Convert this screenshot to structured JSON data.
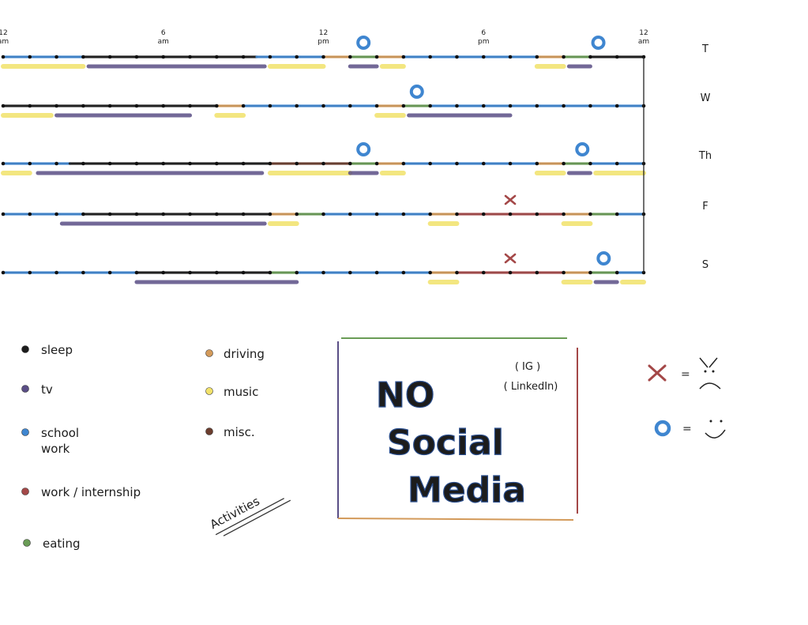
{
  "time_axis": {
    "ticks": [
      {
        "hour": 0,
        "top": "12",
        "bottom": "am"
      },
      {
        "hour": 6,
        "top": "6",
        "bottom": "am"
      },
      {
        "hour": 12,
        "top": "12",
        "bottom": "pm"
      },
      {
        "hour": 18,
        "top": "6",
        "bottom": "pm"
      },
      {
        "hour": 24,
        "top": "12",
        "bottom": "am"
      }
    ]
  },
  "colors": {
    "sleep": "#1c1c1c",
    "tv": "#5a4e86",
    "school": "#3f86d0",
    "work": "#a44848",
    "eating": "#6a9c56",
    "driving": "#d39a5a",
    "music": "#f2e26a",
    "misc": "#6b3d2e",
    "axis": "#222222"
  },
  "days": [
    {
      "label": "T",
      "line": [
        [
          0,
          3,
          "school"
        ],
        [
          3,
          9.5,
          "sleep"
        ],
        [
          9.5,
          12,
          "school"
        ],
        [
          12,
          13,
          "driving"
        ],
        [
          13,
          14,
          "eating"
        ],
        [
          14,
          15,
          "driving"
        ],
        [
          15,
          20,
          "school"
        ],
        [
          20,
          21,
          "driving"
        ],
        [
          21,
          22,
          "eating"
        ],
        [
          22,
          24,
          "sleep"
        ]
      ],
      "under": [
        [
          0,
          3,
          "music"
        ],
        [
          3.2,
          9.8,
          "tv"
        ],
        [
          10,
          12,
          "music"
        ],
        [
          13,
          14,
          "tv"
        ],
        [
          14.2,
          15,
          "music"
        ],
        [
          20,
          21,
          "music"
        ],
        [
          21.2,
          22,
          "tv"
        ]
      ],
      "marks": [
        {
          "hour": 13.5,
          "kind": "happy"
        },
        {
          "hour": 22.3,
          "kind": "happy"
        }
      ]
    },
    {
      "label": "W",
      "line": [
        [
          0,
          8,
          "sleep"
        ],
        [
          8,
          9,
          "driving"
        ],
        [
          9,
          14,
          "school"
        ],
        [
          14,
          15,
          "driving"
        ],
        [
          15,
          16,
          "eating"
        ],
        [
          16,
          24,
          "school"
        ]
      ],
      "under": [
        [
          0,
          1.8,
          "music"
        ],
        [
          2,
          7,
          "tv"
        ],
        [
          8,
          9,
          "music"
        ],
        [
          14,
          15,
          "music"
        ],
        [
          15.2,
          19,
          "tv"
        ]
      ],
      "marks": [
        {
          "hour": 15.5,
          "kind": "happy"
        }
      ]
    },
    {
      "label": "Th",
      "line": [
        [
          0,
          2.5,
          "school"
        ],
        [
          2.5,
          10,
          "sleep"
        ],
        [
          10,
          13,
          "misc"
        ],
        [
          13,
          14,
          "eating"
        ],
        [
          14,
          15,
          "driving"
        ],
        [
          15,
          20,
          "school"
        ],
        [
          20,
          21,
          "driving"
        ],
        [
          21,
          22,
          "eating"
        ],
        [
          22,
          24,
          "school"
        ]
      ],
      "under": [
        [
          0,
          1,
          "music"
        ],
        [
          1.3,
          9.7,
          "tv"
        ],
        [
          10,
          13,
          "music"
        ],
        [
          13,
          14,
          "tv"
        ],
        [
          14.2,
          15,
          "music"
        ],
        [
          20,
          21,
          "music"
        ],
        [
          21.2,
          22,
          "tv"
        ],
        [
          22.2,
          24,
          "music"
        ]
      ],
      "marks": [
        {
          "hour": 13.5,
          "kind": "happy"
        },
        {
          "hour": 21.7,
          "kind": "happy"
        }
      ]
    },
    {
      "label": "F",
      "line": [
        [
          0,
          3,
          "school"
        ],
        [
          3,
          10,
          "sleep"
        ],
        [
          10,
          11,
          "driving"
        ],
        [
          11,
          12,
          "eating"
        ],
        [
          12,
          16,
          "school"
        ],
        [
          16,
          17,
          "driving"
        ],
        [
          17,
          21,
          "work"
        ],
        [
          21,
          22,
          "driving"
        ],
        [
          22,
          23,
          "eating"
        ],
        [
          23,
          24,
          "school"
        ]
      ],
      "under": [
        [
          2.2,
          9.8,
          "tv"
        ],
        [
          10,
          11,
          "music"
        ],
        [
          16,
          17,
          "music"
        ],
        [
          21,
          22,
          "music"
        ]
      ],
      "marks": [
        {
          "hour": 19,
          "kind": "sad"
        }
      ]
    },
    {
      "label": "S",
      "line": [
        [
          0,
          5,
          "school"
        ],
        [
          5,
          10,
          "sleep"
        ],
        [
          10,
          11,
          "eating"
        ],
        [
          11,
          16,
          "school"
        ],
        [
          16,
          17,
          "driving"
        ],
        [
          17,
          21,
          "work"
        ],
        [
          21,
          22,
          "driving"
        ],
        [
          22,
          23,
          "eating"
        ],
        [
          23,
          24,
          "school"
        ]
      ],
      "under": [
        [
          5,
          11,
          "tv"
        ],
        [
          16,
          17,
          "music"
        ],
        [
          21,
          22,
          "music"
        ],
        [
          22.2,
          23,
          "tv"
        ],
        [
          23.2,
          24,
          "music"
        ]
      ],
      "marks": [
        {
          "hour": 19,
          "kind": "sad"
        },
        {
          "hour": 22.5,
          "kind": "happy"
        }
      ]
    }
  ],
  "legend": {
    "left": [
      {
        "key": "sleep",
        "label": "sleep"
      },
      {
        "key": "tv",
        "label": "tv"
      },
      {
        "key": "school",
        "label": "school\nwork"
      },
      {
        "key": "work",
        "label": "work / internship"
      },
      {
        "key": "eating",
        "label": "eating"
      }
    ],
    "right": [
      {
        "key": "driving",
        "label": "driving"
      },
      {
        "key": "music",
        "label": "music"
      },
      {
        "key": "misc",
        "label": "misc."
      }
    ],
    "title": "Activities"
  },
  "box": {
    "line1": "NO",
    "line2": "Social",
    "line3": "Media",
    "note1": "( IG )",
    "note2": "( LinkedIn)"
  },
  "key": {
    "sad_equals": "=",
    "happy_equals": "="
  }
}
